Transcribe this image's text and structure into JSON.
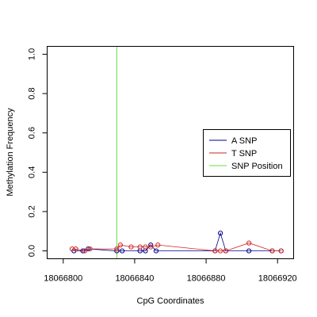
{
  "chart_data": {
    "type": "line",
    "xlabel": "CpG Coordinates",
    "ylabel": "Methylation Frequency",
    "xlim": [
      18066791,
      18066929
    ],
    "ylim": [
      -0.04,
      1.04
    ],
    "x_ticks": [
      {
        "value": 18066800,
        "label": "18066800"
      },
      {
        "value": 18066840,
        "label": "18066840"
      },
      {
        "value": 18066880,
        "label": "18066880"
      },
      {
        "value": 18066920,
        "label": "18066920"
      }
    ],
    "y_ticks": [
      {
        "value": 0.0,
        "label": "0.0"
      },
      {
        "value": 0.2,
        "label": "0.2"
      },
      {
        "value": 0.4,
        "label": "0.4"
      },
      {
        "value": 0.6,
        "label": "0.6"
      },
      {
        "value": 0.8,
        "label": "0.8"
      },
      {
        "value": 1.0,
        "label": "1.0"
      }
    ],
    "snp_position": 18066830,
    "series": [
      {
        "name": "A SNP",
        "color": "#00008B",
        "x": [
          18066806,
          18066811,
          18066814,
          18066830,
          18066833,
          18066843,
          18066846,
          18066849,
          18066852,
          18066885,
          18066888,
          18066891,
          18066904,
          18066917,
          18066922
        ],
        "y": [
          0.0,
          0.0,
          0.01,
          0.0,
          0.0,
          0.0,
          0.0,
          0.03,
          0.0,
          0.0,
          0.09,
          0.0,
          0.0,
          0.0,
          0.0
        ]
      },
      {
        "name": "T SNP",
        "color": "#CD2626",
        "x": [
          18066805,
          18066807,
          18066812,
          18066815,
          18066830,
          18066832,
          18066838,
          18066843,
          18066846,
          18066849,
          18066853,
          18066885,
          18066888,
          18066891,
          18066904,
          18066917,
          18066922
        ],
        "y": [
          0.01,
          0.01,
          0.0,
          0.01,
          0.01,
          0.03,
          0.02,
          0.02,
          0.02,
          0.02,
          0.03,
          0.0,
          0.0,
          0.0,
          0.04,
          0.0,
          0.0
        ]
      }
    ],
    "legend": {
      "placement": "right",
      "entries": [
        {
          "label": "A SNP",
          "color": "#00008B"
        },
        {
          "label": "T SNP",
          "color": "#CD2626"
        },
        {
          "label": "SNP Position",
          "color": "#66DD44"
        }
      ]
    }
  }
}
